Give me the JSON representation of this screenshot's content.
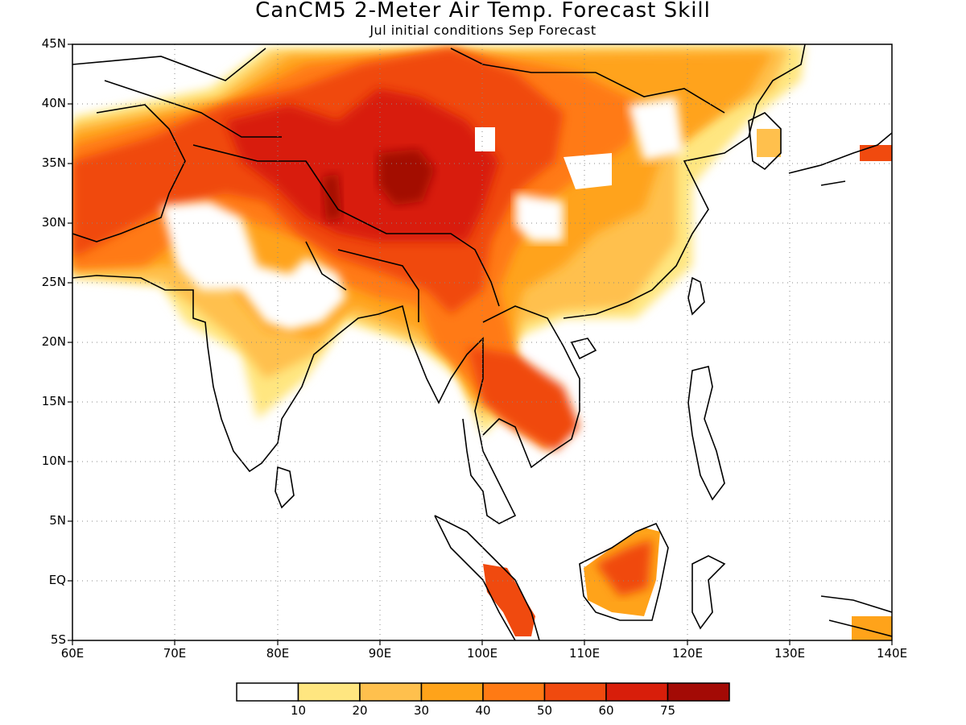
{
  "title": "CanCM5 2-Meter Air Temp. Forecast Skill",
  "subtitle": "Jul initial conditions  Sep Forecast",
  "lat_ticks": [
    "45N",
    "40N",
    "35N",
    "30N",
    "25N",
    "20N",
    "15N",
    "10N",
    "5N",
    "EQ",
    "5S"
  ],
  "lon_ticks": [
    "60E",
    "70E",
    "80E",
    "90E",
    "100E",
    "110E",
    "120E",
    "130E",
    "140E"
  ],
  "colorbar": {
    "bins": [
      {
        "color": "#ffffff",
        "label": ""
      },
      {
        "color": "#ffe680",
        "label": "10"
      },
      {
        "color": "#ffc04d",
        "label": "20"
      },
      {
        "color": "#ffa31a",
        "label": "30"
      },
      {
        "color": "#ff7a14",
        "label": "40"
      },
      {
        "color": "#f04a0f",
        "label": "50"
      },
      {
        "color": "#d81e0a",
        "label": "60"
      },
      {
        "color": "#a30a05",
        "label": "75"
      }
    ]
  }
}
